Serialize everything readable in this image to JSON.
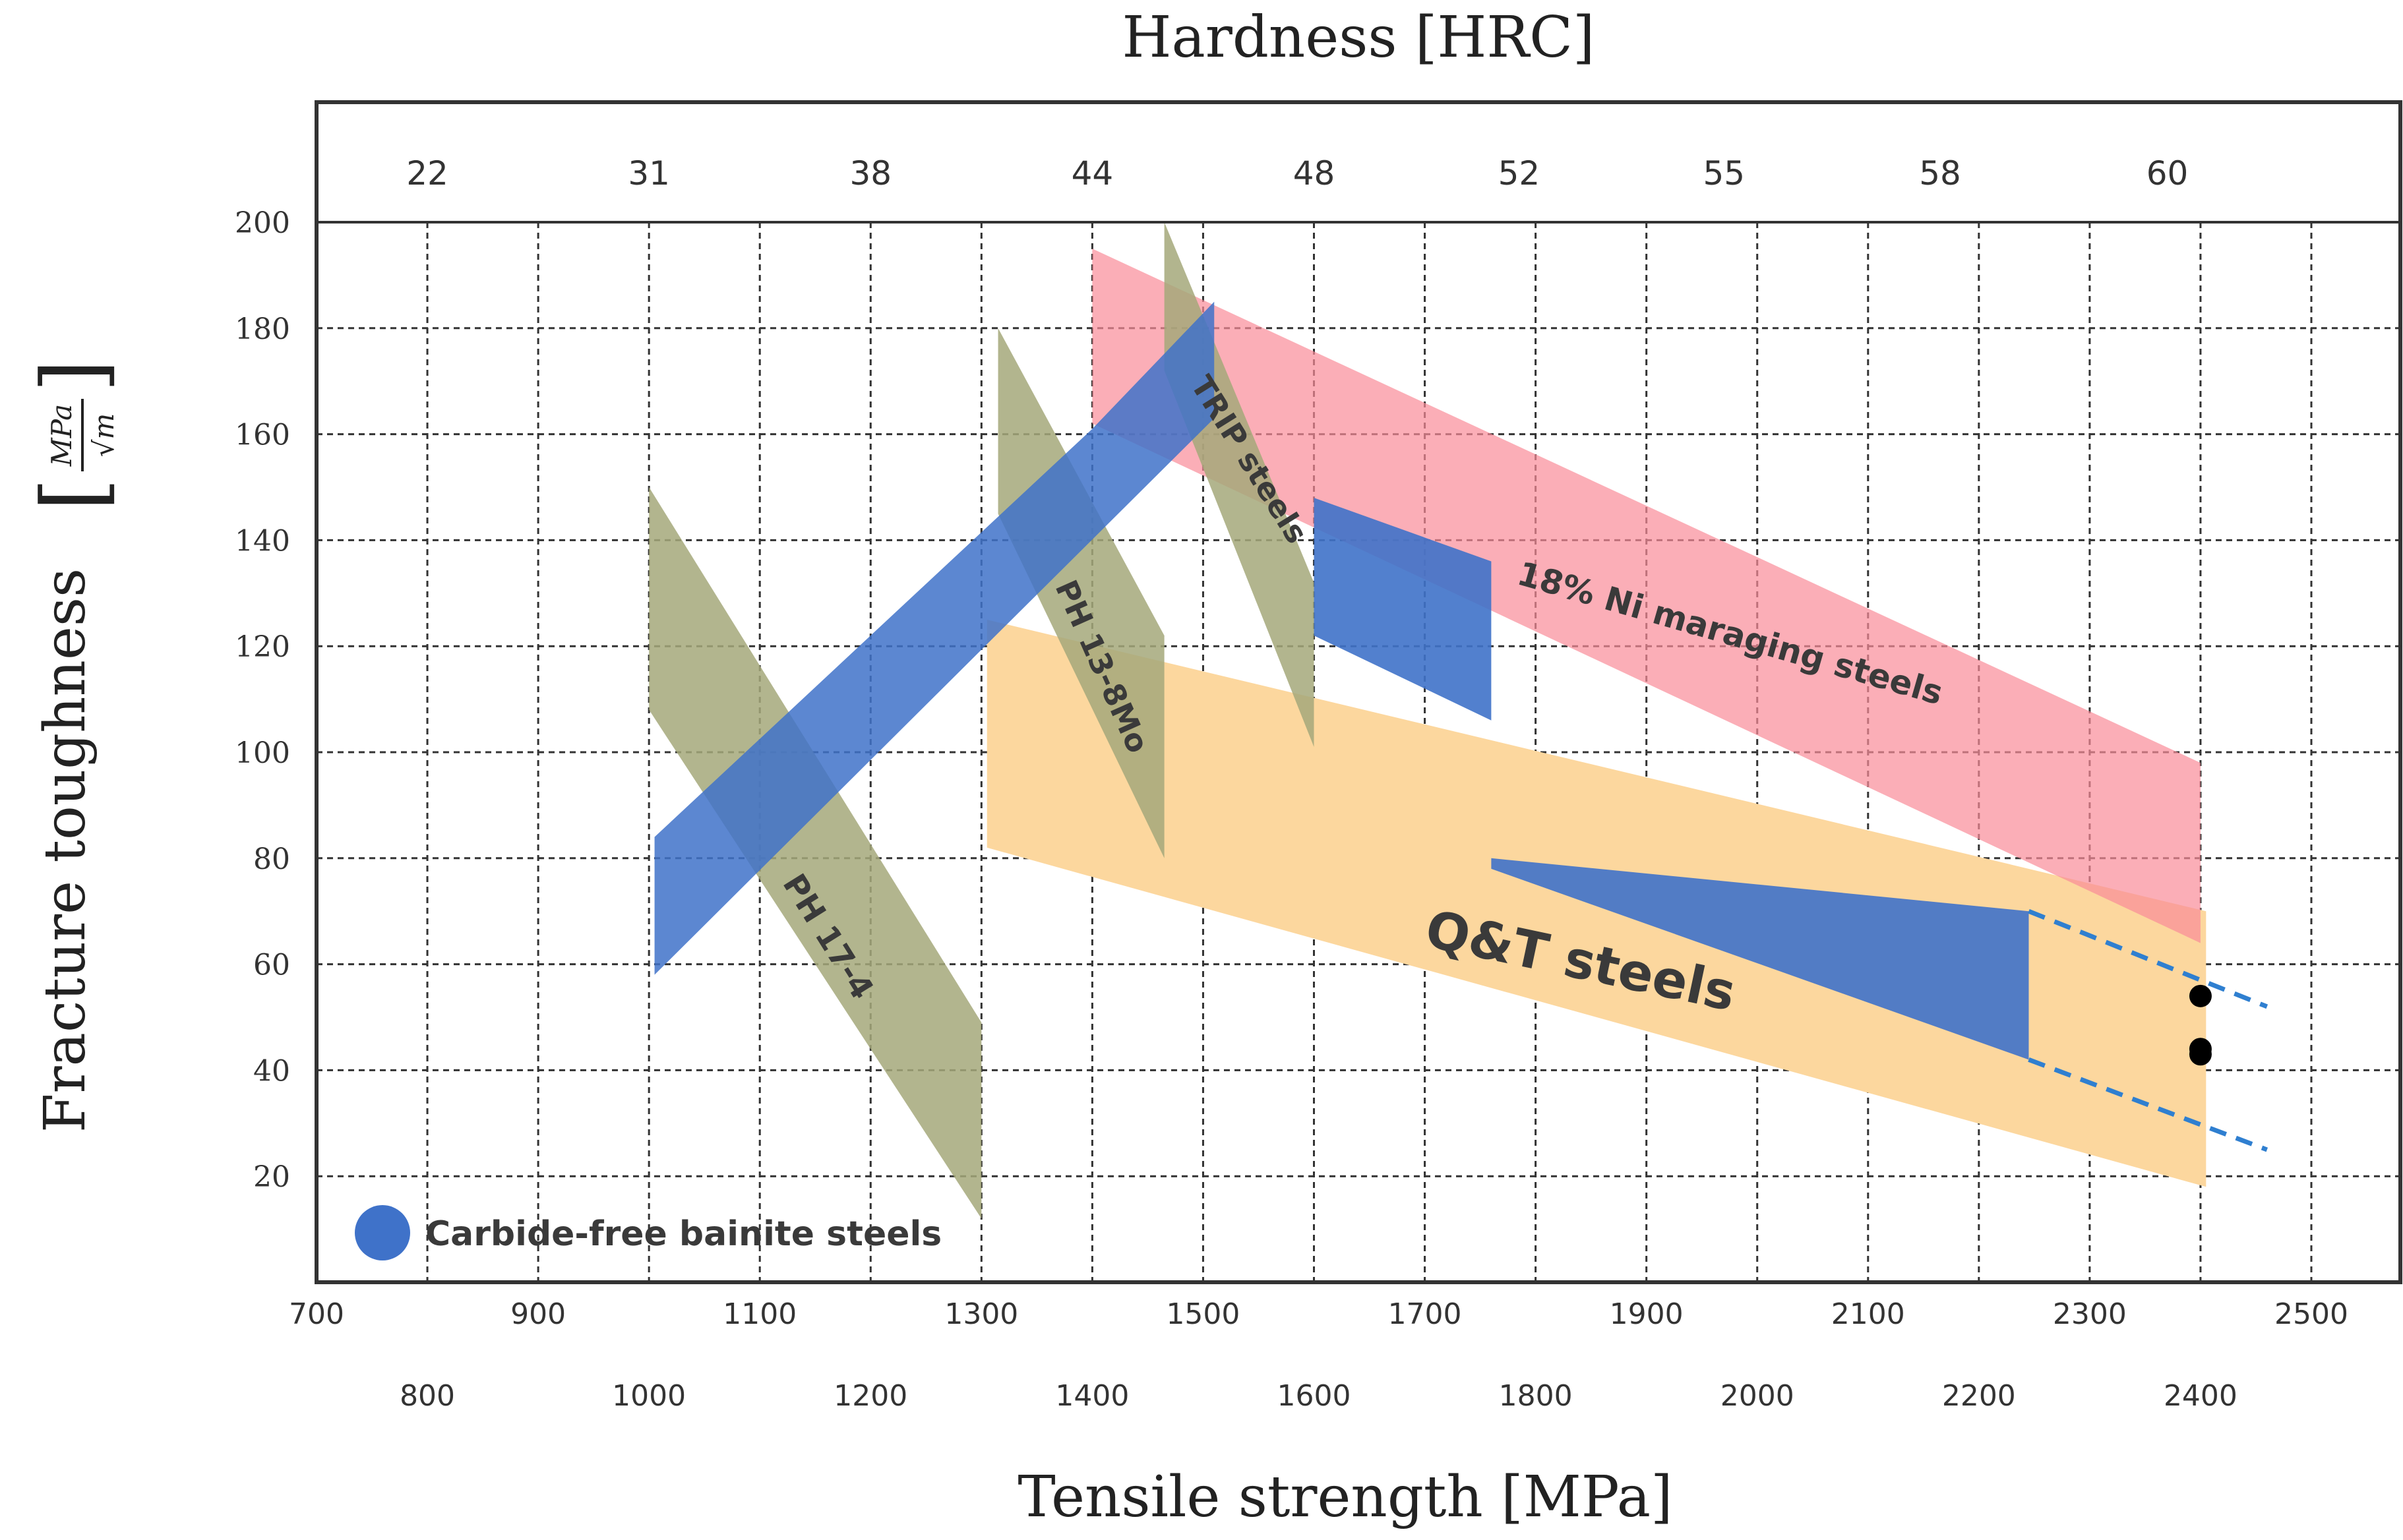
{
  "chart_data": {
    "type": "area",
    "title": "Hardness [HRC]",
    "xlabel": "Tensile strength [MPa]",
    "ylabel": "Fracture toughness",
    "ylabel_unit": "[MPa/√m]",
    "ylabel_unit_num": "MPa",
    "ylabel_unit_den": "√m",
    "xlim": [
      700,
      2560
    ],
    "ylim": [
      0,
      200
    ],
    "grid": true,
    "y_ticks": [
      20,
      40,
      60,
      80,
      100,
      120,
      140,
      160,
      180,
      200
    ],
    "x_ticks_odd": [
      700,
      900,
      1100,
      1300,
      1500,
      1700,
      1900,
      2100,
      2300,
      2500
    ],
    "x_ticks_even": [
      800,
      1000,
      1200,
      1400,
      1600,
      1800,
      2000,
      2200,
      2400
    ],
    "hardness_ticks": [
      {
        "hrc": "22",
        "mpa": 800
      },
      {
        "hrc": "31",
        "mpa": 1000
      },
      {
        "hrc": "38",
        "mpa": 1200
      },
      {
        "hrc": "44",
        "mpa": 1400
      },
      {
        "hrc": "48",
        "mpa": 1600
      },
      {
        "hrc": "52",
        "mpa": 1785
      },
      {
        "hrc": "55",
        "mpa": 1970
      },
      {
        "hrc": "58",
        "mpa": 2165
      },
      {
        "hrc": "60",
        "mpa": 2370
      }
    ],
    "series": [
      {
        "name": "Q&T steels",
        "color": "#fcd79e",
        "polygon": [
          [
            1305,
            125
          ],
          [
            2405,
            70
          ],
          [
            2405,
            18
          ],
          [
            1305,
            82
          ]
        ],
        "label": {
          "text": "Q&T steels",
          "x": 1840,
          "y": 60,
          "angle": 12,
          "size": 78
        }
      },
      {
        "name": "18% Ni maraging steels",
        "color": "#f98b99",
        "opacity": 0.7,
        "polygon": [
          [
            1400,
            195
          ],
          [
            2400,
            98
          ],
          [
            2400,
            64
          ],
          [
            1400,
            162
          ]
        ],
        "label": {
          "text": "18% Ni maraging steels",
          "x": 1975,
          "y": 122,
          "angle": 16,
          "size": 50
        }
      },
      {
        "name": "PH 17-4",
        "color": "#a4a87a",
        "opacity": 0.85,
        "polygon": [
          [
            1000,
            150
          ],
          [
            1000,
            108
          ],
          [
            1300,
            12
          ],
          [
            1300,
            49
          ]
        ],
        "label": {
          "text": "PH 17-4",
          "x": 1160,
          "y": 65,
          "angle": 58,
          "size": 48
        }
      },
      {
        "name": "PH 13-8Mo",
        "color": "#a4a87a",
        "opacity": 0.85,
        "polygon": [
          [
            1315,
            180
          ],
          [
            1315,
            145
          ],
          [
            1465,
            80
          ],
          [
            1465,
            122
          ]
        ],
        "label": {
          "text": "PH 13-8Mo",
          "x": 1407,
          "y": 116,
          "angle": 66,
          "size": 46
        }
      },
      {
        "name": "TRIP steels",
        "color": "#a4a87a",
        "opacity": 0.85,
        "polygon": [
          [
            1465,
            200
          ],
          [
            1465,
            172
          ],
          [
            1600,
            101
          ],
          [
            1600,
            132
          ]
        ],
        "label": {
          "text": "TRIP steels",
          "x": 1540,
          "y": 155,
          "angle": 58,
          "size": 46
        }
      },
      {
        "name": "Carbide-free bainite steels",
        "color": "#3f72c9",
        "opacity": 0.85,
        "polygon": [
          [
            1005,
            84
          ],
          [
            1400,
            161
          ],
          [
            1510,
            185
          ],
          [
            1510,
            163
          ],
          [
            1005,
            58
          ]
        ],
        "label": {
          "text": "",
          "x": 0,
          "y": 0,
          "angle": 0,
          "size": 0
        }
      },
      {
        "name": "Carbide-free bainite steels",
        "color": "#3f72c9",
        "opacity": 0.9,
        "polygon": [
          [
            1600,
            148
          ],
          [
            1760,
            136
          ],
          [
            1760,
            80
          ],
          [
            2245,
            70
          ],
          [
            2245,
            42
          ],
          [
            1760,
            78
          ],
          [
            1760,
            106
          ],
          [
            1600,
            122
          ]
        ],
        "label": {
          "text": "",
          "x": 0,
          "y": 0,
          "angle": 0,
          "size": 0
        }
      }
    ],
    "dashed_extrapolation": [
      {
        "from": [
          2245,
          70
        ],
        "to": [
          2460,
          52
        ]
      },
      {
        "from": [
          2245,
          42
        ],
        "to": [
          2460,
          25
        ]
      }
    ],
    "data_points": [
      {
        "x": 2400,
        "y": 54
      },
      {
        "x": 2400,
        "y": 44
      },
      {
        "x": 2400,
        "y": 43
      }
    ],
    "legend": {
      "label": "Carbide-free bainite steels",
      "color": "#3f72c9",
      "position": "bottom-left"
    }
  }
}
